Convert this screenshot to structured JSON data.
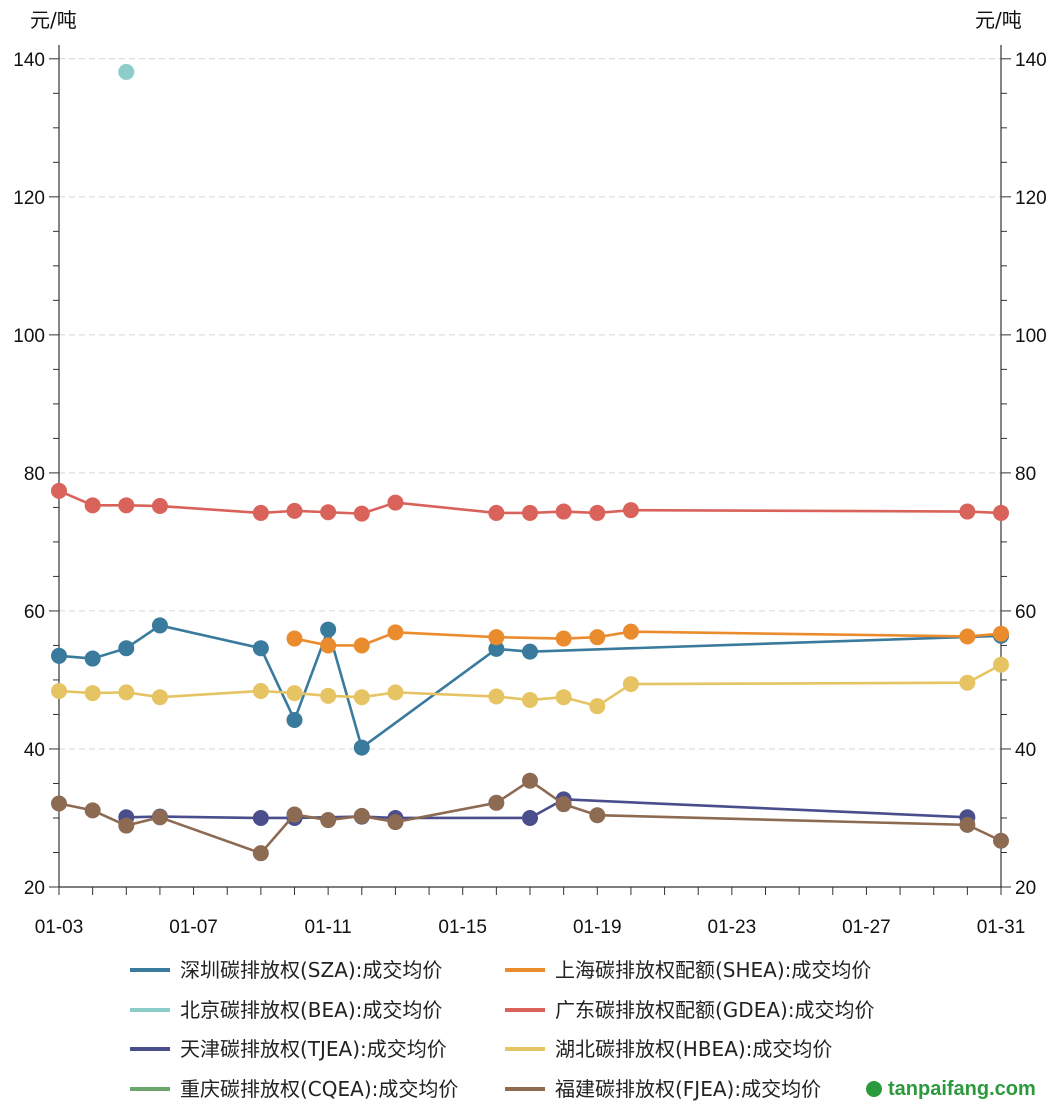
{
  "chart_data": {
    "type": "line",
    "y_unit_label_left": "元/吨",
    "y_unit_label_right": "元/吨",
    "ylim": [
      20,
      142
    ],
    "yticks": [
      20,
      40,
      60,
      80,
      100,
      120,
      140
    ],
    "xlim": [
      3,
      31
    ],
    "xticks": [
      {
        "day": 3,
        "label": "01-03"
      },
      {
        "day": 7,
        "label": "01-07"
      },
      {
        "day": 11,
        "label": "01-11"
      },
      {
        "day": 15,
        "label": "01-15"
      },
      {
        "day": 19,
        "label": "01-19"
      },
      {
        "day": 23,
        "label": "01-23"
      },
      {
        "day": 27,
        "label": "01-27"
      },
      {
        "day": 31,
        "label": "01-31"
      }
    ],
    "grid": true,
    "series": [
      {
        "name": "深圳碳排放权(SZA):成交均价",
        "color": "#3a7a9c",
        "x": [
          3,
          4,
          5,
          6,
          9,
          10,
          11,
          12,
          16,
          17,
          31
        ],
        "y": [
          53.5,
          53.1,
          54.6,
          57.9,
          54.6,
          44.2,
          57.3,
          40.2,
          54.5,
          54.1,
          56.4
        ]
      },
      {
        "name": "上海碳排放权配额(SHEA):成交均价",
        "color": "#ea8c2e",
        "x": [
          10,
          11,
          12,
          13,
          16,
          18,
          19,
          20,
          30,
          31
        ],
        "y": [
          56.0,
          55.0,
          55.0,
          56.9,
          56.2,
          56.0,
          56.2,
          57.0,
          56.3,
          56.7
        ]
      },
      {
        "name": "北京碳排放权(BEA):成交均价",
        "color": "#8dcdc9",
        "x": [
          5
        ],
        "y": [
          138.1
        ]
      },
      {
        "name": "广东碳排放权配额(GDEA):成交均价",
        "color": "#d9625a",
        "x": [
          3,
          4,
          5,
          6,
          9,
          10,
          11,
          12,
          13,
          16,
          17,
          18,
          19,
          20,
          30,
          31
        ],
        "y": [
          77.4,
          75.3,
          75.3,
          75.2,
          74.2,
          74.5,
          74.3,
          74.1,
          75.7,
          74.2,
          74.2,
          74.4,
          74.2,
          74.6,
          74.4,
          74.2
        ]
      },
      {
        "name": "天津碳排放权(TJEA):成交均价",
        "color": "#4a4e8c",
        "x": [
          5,
          6,
          9,
          10,
          12,
          13,
          17,
          18,
          30
        ],
        "y": [
          30.1,
          30.2,
          30.0,
          30.0,
          30.2,
          30.0,
          30.0,
          32.7,
          30.1
        ]
      },
      {
        "name": "湖北碳排放权(HBEA):成交均价",
        "color": "#e6c464",
        "x": [
          3,
          4,
          5,
          6,
          9,
          10,
          11,
          12,
          13,
          16,
          17,
          18,
          19,
          20,
          30,
          31
        ],
        "y": [
          48.4,
          48.1,
          48.2,
          47.5,
          48.4,
          48.1,
          47.7,
          47.5,
          48.2,
          47.6,
          47.1,
          47.5,
          46.2,
          49.4,
          49.6,
          52.2
        ]
      },
      {
        "name": "重庆碳排放权(CQEA):成交均价",
        "color": "#6aa66e",
        "x": [],
        "y": []
      },
      {
        "name": "福建碳排放权(FJEA):成交均价",
        "color": "#8d6a52",
        "x": [
          3,
          4,
          5,
          6,
          9,
          10,
          11,
          12,
          13,
          16,
          17,
          18,
          19,
          30,
          31
        ],
        "y": [
          32.1,
          31.1,
          28.9,
          30.1,
          24.9,
          30.5,
          29.7,
          30.3,
          29.4,
          32.2,
          35.4,
          32.0,
          30.4,
          29.0,
          26.7
        ]
      }
    ]
  },
  "watermark": "tanpaifang.com"
}
